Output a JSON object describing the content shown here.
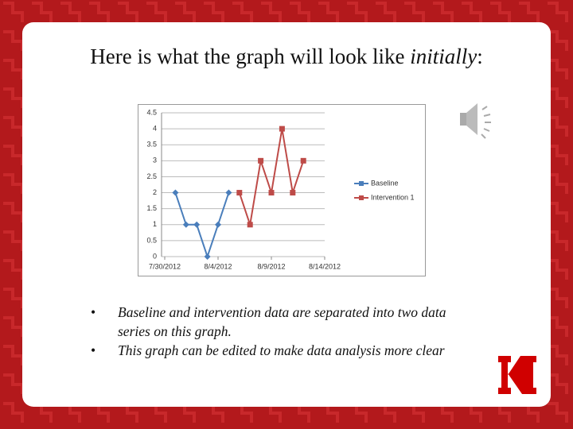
{
  "slide": {
    "title": "Here is what the graph will look like ",
    "title_emphasis": "initially",
    "title_end": ":",
    "bullets": [
      "Baseline and intervention data are separated into two data series on this graph.",
      "This graph can be edited to make data analysis more clear"
    ]
  },
  "chart_data": {
    "type": "line",
    "xlim": [
      "7/30/2012",
      "8/14/2012"
    ],
    "xticks": [
      "7/30/2012",
      "8/4/2012",
      "8/9/2012",
      "8/14/2012"
    ],
    "ylim": [
      0,
      4.5
    ],
    "yticks": [
      0,
      0.5,
      1,
      1.5,
      2,
      2.5,
      3,
      3.5,
      4,
      4.5
    ],
    "grid": true,
    "series": [
      {
        "name": "Baseline",
        "color": "#4a7ebb",
        "marker": "diamond",
        "x": [
          "7/31/2012",
          "8/1/2012",
          "8/2/2012",
          "8/3/2012",
          "8/4/2012",
          "8/5/2012"
        ],
        "values": [
          2,
          1,
          1,
          0,
          1,
          2
        ]
      },
      {
        "name": "Intervention 1",
        "color": "#be4b48",
        "marker": "square",
        "x": [
          "8/6/2012",
          "8/7/2012",
          "8/8/2012",
          "8/9/2012",
          "8/10/2012",
          "8/11/2012",
          "8/12/2012"
        ],
        "values": [
          2,
          1,
          3,
          2,
          4,
          2,
          3
        ]
      }
    ]
  }
}
